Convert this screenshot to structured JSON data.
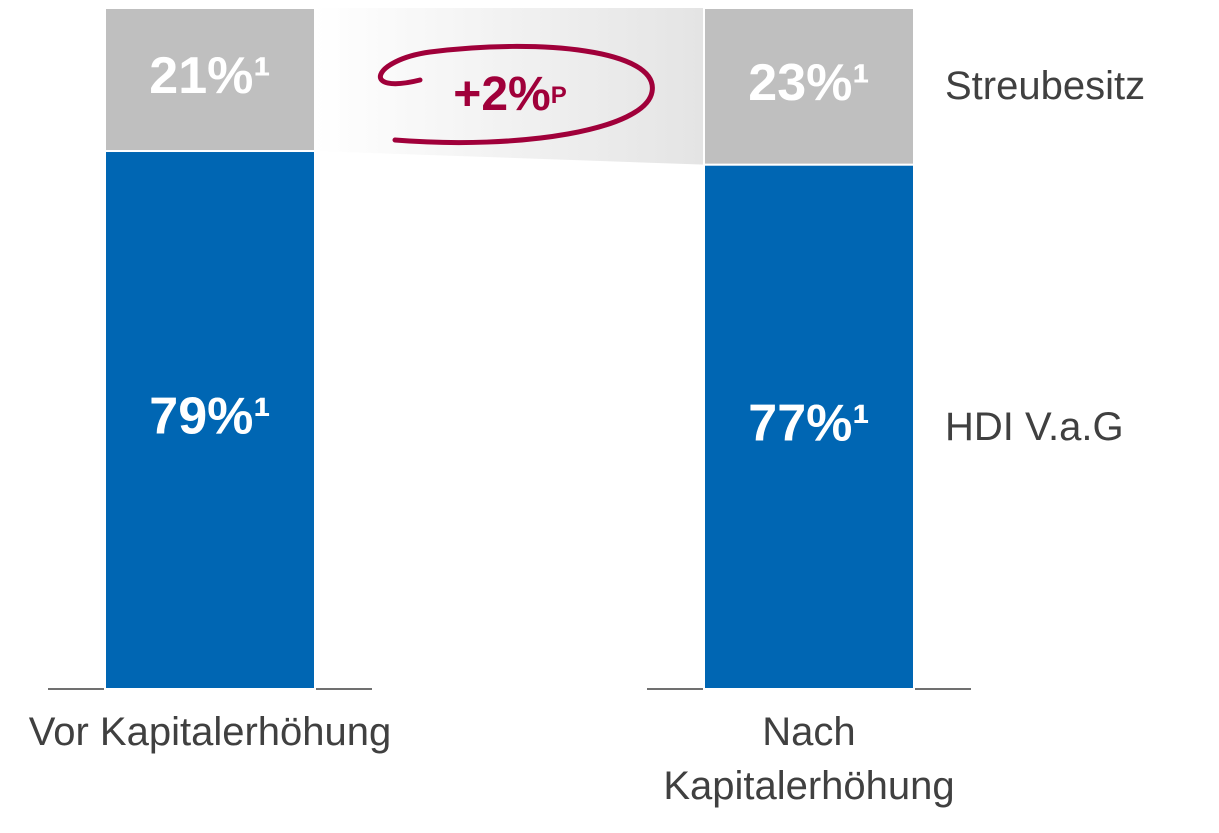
{
  "chart_data": {
    "type": "stacked_bar",
    "categories": [
      "Vor Kapitalerhöhung",
      "Nach Kapitalerhöhung"
    ],
    "series": [
      {
        "name": "HDI V.a.G",
        "color": "#0066b3",
        "values": [
          79,
          77
        ],
        "value_labels": [
          "79%¹",
          "77%¹"
        ]
      },
      {
        "name": "Streubesitz",
        "color": "#bfbfbf",
        "values": [
          21,
          23
        ],
        "value_labels": [
          "21%¹",
          "23%¹"
        ]
      }
    ],
    "annotation": {
      "text": "+2%",
      "suffix": "P",
      "color": "#a0003a"
    }
  }
}
